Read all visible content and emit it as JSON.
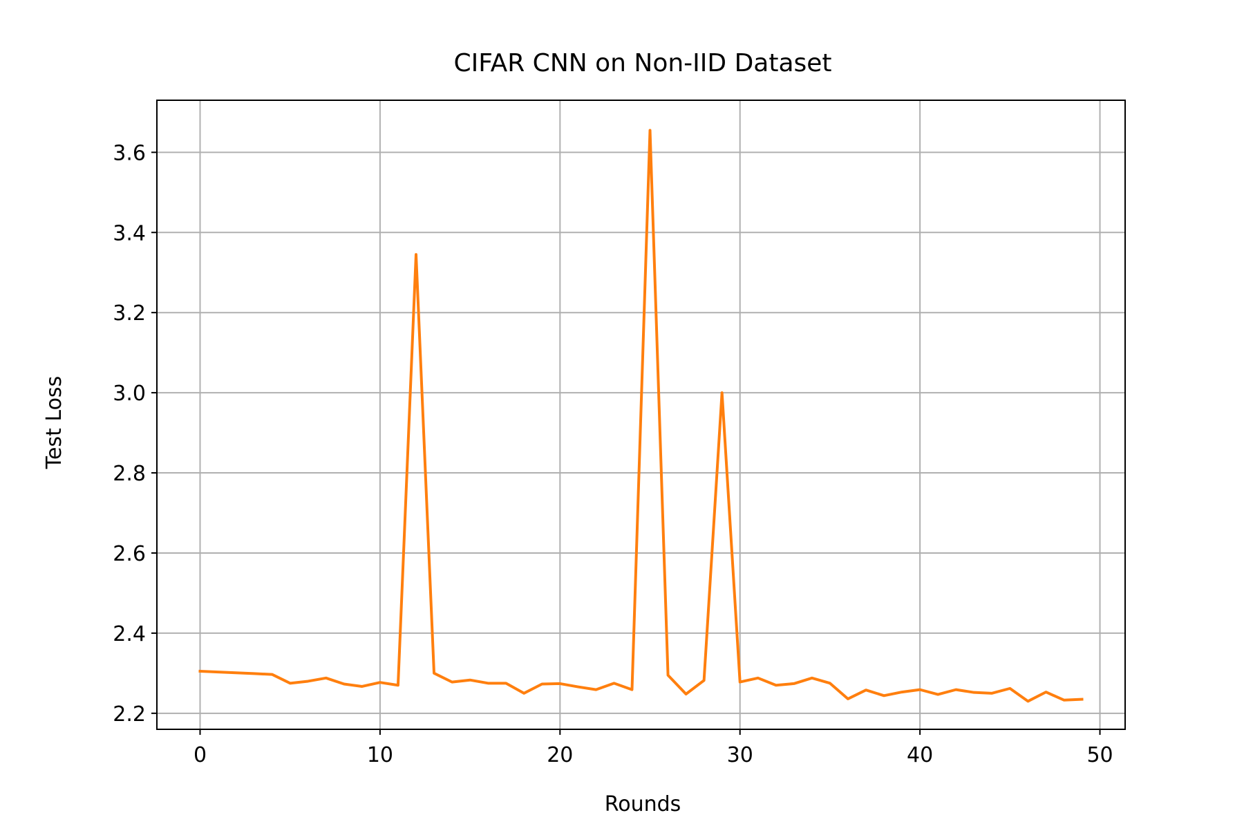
{
  "chart_data": {
    "type": "line",
    "title": "CIFAR CNN on Non-IID Dataset",
    "xlabel": "Rounds",
    "ylabel": "Test Loss",
    "xlim": [
      -2.4,
      51.4
    ],
    "ylim": [
      2.16,
      3.73
    ],
    "xticks": [
      0,
      10,
      20,
      30,
      40,
      50
    ],
    "yticks": [
      2.2,
      2.4,
      2.6,
      2.8,
      3.0,
      3.2,
      3.4,
      3.6
    ],
    "ytick_labels": [
      "2.2",
      "2.4",
      "2.6",
      "2.8",
      "3.0",
      "3.2",
      "3.4",
      "3.6"
    ],
    "grid": true,
    "series": [
      {
        "color": "#ff7f0e",
        "x": [
          0,
          1,
          2,
          3,
          4,
          5,
          6,
          7,
          8,
          9,
          10,
          11,
          12,
          13,
          14,
          15,
          16,
          17,
          18,
          19,
          20,
          21,
          22,
          23,
          24,
          25,
          26,
          27,
          28,
          29,
          30,
          31,
          32,
          33,
          34,
          35,
          36,
          37,
          38,
          39,
          40,
          41,
          42,
          43,
          44,
          45,
          46,
          47,
          48,
          49
        ],
        "y": [
          2.305,
          2.303,
          2.301,
          2.299,
          2.297,
          2.275,
          2.28,
          2.288,
          2.273,
          2.267,
          2.277,
          2.27,
          3.345,
          2.3,
          2.278,
          2.283,
          2.275,
          2.275,
          2.25,
          2.273,
          2.274,
          2.266,
          2.259,
          2.275,
          2.259,
          3.655,
          2.295,
          2.248,
          2.282,
          3.0,
          2.278,
          2.288,
          2.27,
          2.274,
          2.288,
          2.275,
          2.236,
          2.258,
          2.244,
          2.253,
          2.259,
          2.247,
          2.259,
          2.252,
          2.25,
          2.262,
          2.23,
          2.253,
          2.233,
          2.235
        ]
      }
    ]
  }
}
